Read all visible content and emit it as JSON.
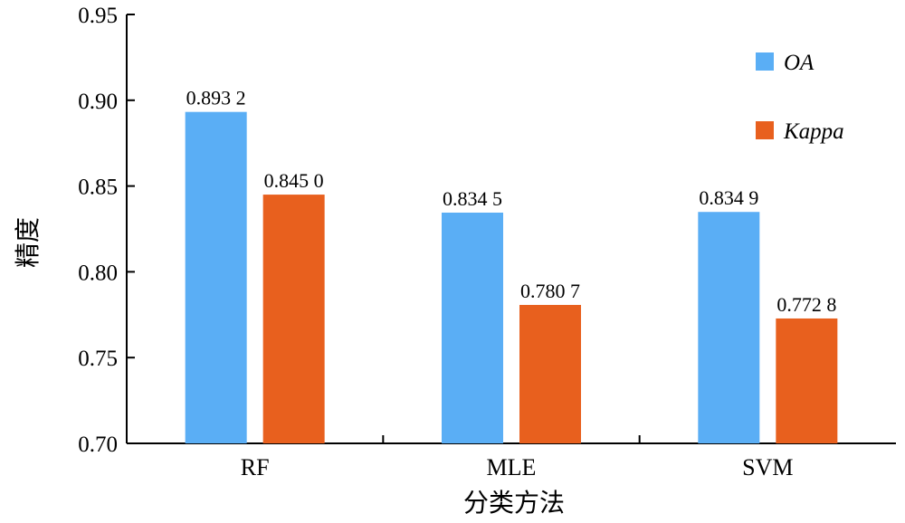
{
  "chart_data": {
    "type": "bar",
    "categories": [
      "RF",
      "MLE",
      "SVM"
    ],
    "series": [
      {
        "name": "OA",
        "values": [
          0.8932,
          0.8345,
          0.8349
        ],
        "labels": [
          "0.893 2",
          "0.834 5",
          "0.834 9"
        ],
        "color": "#5aaef5"
      },
      {
        "name": "Kappa",
        "values": [
          0.845,
          0.7807,
          0.7728
        ],
        "labels": [
          "0.845 0",
          "0.780 7",
          "0.772 8"
        ],
        "color": "#e8601e"
      }
    ],
    "xlabel": "分类方法",
    "ylabel": "精度",
    "ylim": [
      0.7,
      0.95
    ],
    "yticks": [
      0.7,
      0.75,
      0.8,
      0.85,
      0.9,
      0.95
    ],
    "ytick_labels": [
      "0.70",
      "0.75",
      "0.80",
      "0.85",
      "0.90",
      "0.95"
    ],
    "legend_position": "top-right",
    "grid": false
  }
}
